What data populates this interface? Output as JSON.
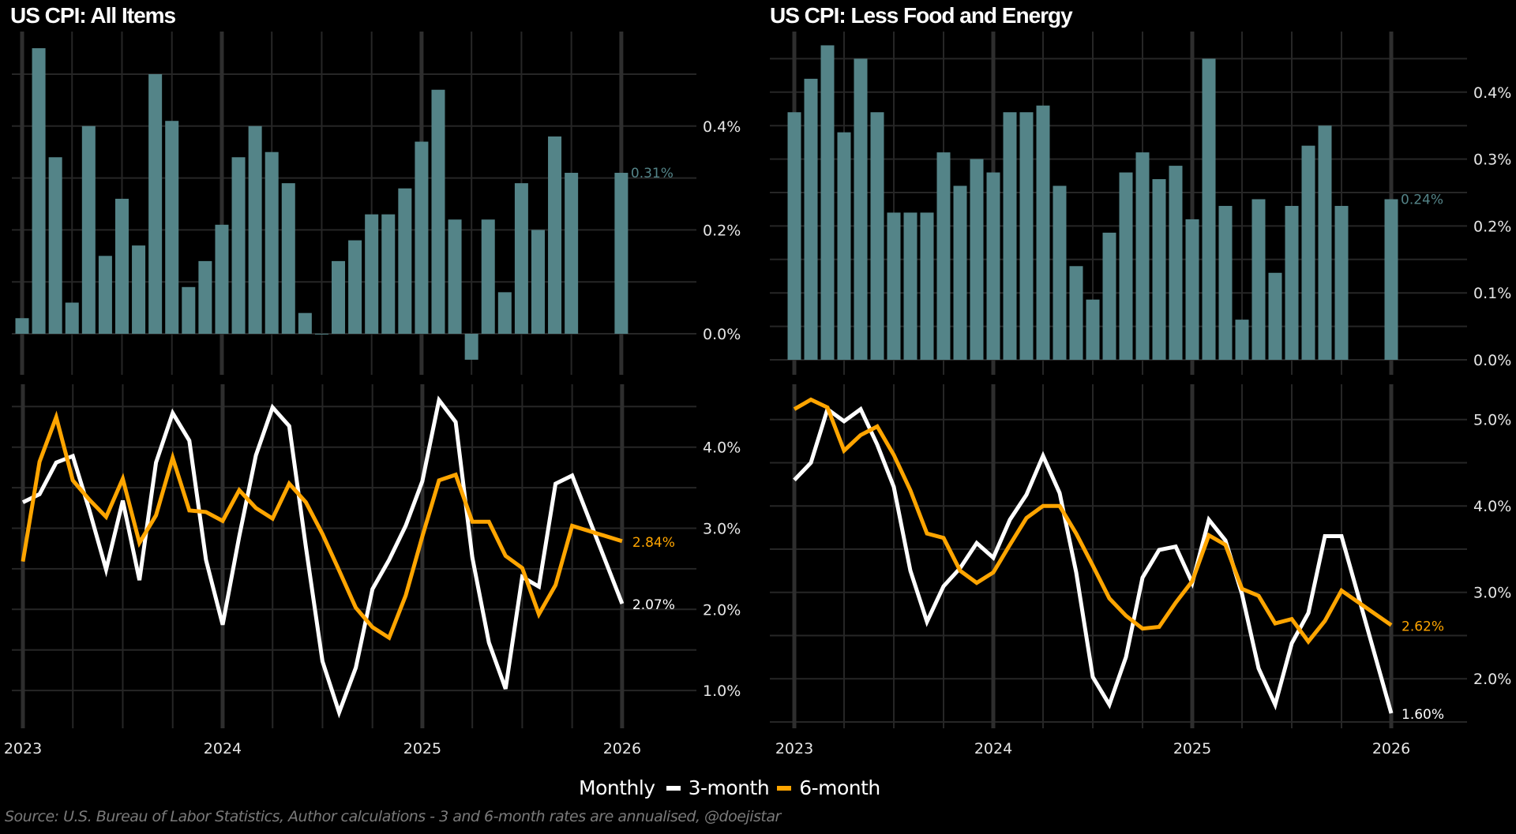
{
  "panels": [
    {
      "title": "US CPI: All Items"
    },
    {
      "title": "US CPI: Less Food and Energy"
    }
  ],
  "legend": {
    "title": "Monthly",
    "items": [
      {
        "label": "3-month",
        "color": "#ffffff"
      },
      {
        "label": "6-month",
        "color": "#ffa500"
      }
    ]
  },
  "source": "Source: U.S. Bureau of Labor Statistics, Author calculations - 3 and 6-month rates are annualised, @doejistar",
  "colors": {
    "background": "#000000",
    "bar": "#548488",
    "grid": "#262626",
    "year_line": "#2e2e2e",
    "three_month": "#ffffff",
    "six_month": "#ffa500"
  },
  "chart_data": [
    {
      "type": "bar",
      "title": "US CPI: All Items",
      "x_start": "2023-01",
      "x_ticks": [
        "2023",
        "2024",
        "2025",
        "2026"
      ],
      "ylim": [
        -0.05,
        0.57
      ],
      "y_ticks": [
        "0.0%",
        "0.2%",
        "0.4%"
      ],
      "y_tick_values": [
        0,
        0.2,
        0.4
      ],
      "grid": true,
      "values": [
        0.03,
        0.55,
        0.34,
        0.06,
        0.4,
        0.15,
        0.26,
        0.17,
        0.5,
        0.41,
        0.09,
        0.14,
        0.21,
        0.34,
        0.4,
        0.35,
        0.29,
        0.04,
        0.0,
        0.14,
        0.18,
        0.23,
        0.23,
        0.28,
        0.37,
        0.47,
        0.22,
        -0.05,
        0.22,
        0.08,
        0.29,
        0.2,
        0.38,
        0.31,
        null,
        null,
        0.31
      ],
      "end_label": "0.31%"
    },
    {
      "type": "line",
      "x_start": "2023-01",
      "x_ticks": [
        "2023",
        "2024",
        "2025",
        "2026"
      ],
      "ylim": [
        0.5,
        4.7
      ],
      "y_ticks": [
        "1.0%",
        "2.0%",
        "3.0%",
        "4.0%"
      ],
      "y_tick_values": [
        1,
        2,
        3,
        4
      ],
      "grid": true,
      "legend": "bottom",
      "series": [
        {
          "name": "3-month",
          "color": "#ffffff",
          "end_label": "2.07%",
          "values": [
            3.32,
            3.42,
            3.81,
            3.89,
            3.22,
            2.49,
            3.34,
            2.36,
            3.81,
            4.42,
            4.08,
            2.61,
            1.81,
            2.9,
            3.9,
            4.49,
            4.26,
            2.77,
            1.36,
            0.73,
            1.28,
            2.25,
            2.61,
            3.03,
            3.58,
            4.58,
            4.31,
            2.64,
            1.59,
            1.02,
            2.4,
            2.28,
            3.55,
            3.65,
            null,
            null,
            2.07
          ]
        },
        {
          "name": "6-month",
          "color": "#ffa500",
          "end_label": "2.84%",
          "values": [
            2.59,
            3.82,
            4.37,
            3.59,
            3.35,
            3.14,
            3.61,
            2.82,
            3.16,
            3.87,
            3.22,
            3.2,
            3.09,
            3.47,
            3.25,
            3.12,
            3.55,
            3.32,
            2.93,
            2.48,
            2.02,
            1.78,
            1.65,
            2.17,
            2.9,
            3.59,
            3.66,
            3.08,
            3.08,
            2.66,
            2.51,
            1.94,
            2.3,
            3.03,
            null,
            null,
            2.84
          ]
        }
      ]
    },
    {
      "type": "bar",
      "title": "US CPI: Less Food and Energy",
      "x_start": "2023-01",
      "x_ticks": [
        "2023",
        "2024",
        "2025",
        "2026"
      ],
      "ylim": [
        0,
        0.47
      ],
      "y_ticks": [
        "0.0%",
        "0.1%",
        "0.2%",
        "0.3%",
        "0.4%"
      ],
      "y_tick_values": [
        0,
        0.1,
        0.2,
        0.3,
        0.4
      ],
      "grid": true,
      "values": [
        0.37,
        0.42,
        0.47,
        0.34,
        0.45,
        0.37,
        0.22,
        0.22,
        0.22,
        0.31,
        0.26,
        0.3,
        0.28,
        0.37,
        0.37,
        0.38,
        0.26,
        0.14,
        0.09,
        0.19,
        0.28,
        0.31,
        0.27,
        0.29,
        0.21,
        0.45,
        0.23,
        0.06,
        0.24,
        0.13,
        0.23,
        0.32,
        0.35,
        0.23,
        null,
        null,
        0.24
      ],
      "end_label": "0.24%"
    },
    {
      "type": "line",
      "x_start": "2023-01",
      "x_ticks": [
        "2023",
        "2024",
        "2025",
        "2026"
      ],
      "ylim": [
        1.4,
        5.3
      ],
      "y_ticks": [
        "2.0%",
        "3.0%",
        "4.0%",
        "5.0%"
      ],
      "y_tick_values": [
        2,
        3,
        4,
        5
      ],
      "grid": true,
      "legend": "bottom",
      "series": [
        {
          "name": "3-month",
          "color": "#ffffff",
          "end_label": "1.60%",
          "values": [
            4.3,
            4.5,
            5.12,
            4.98,
            5.12,
            4.71,
            4.22,
            3.25,
            2.66,
            3.07,
            3.28,
            3.57,
            3.4,
            3.84,
            4.13,
            4.58,
            4.15,
            3.23,
            2.02,
            1.7,
            2.25,
            3.17,
            3.49,
            3.53,
            3.11,
            3.84,
            3.6,
            2.98,
            2.12,
            1.7,
            2.41,
            2.76,
            3.65,
            3.65,
            null,
            null,
            1.6
          ]
        },
        {
          "name": "6-month",
          "color": "#ffa500",
          "end_label": "2.62%",
          "values": [
            5.12,
            5.23,
            5.14,
            4.64,
            4.82,
            4.92,
            4.59,
            4.18,
            3.68,
            3.63,
            3.25,
            3.11,
            3.23,
            3.55,
            3.86,
            4.0,
            4.0,
            3.68,
            3.31,
            2.93,
            2.73,
            2.58,
            2.6,
            2.88,
            3.13,
            3.66,
            3.55,
            3.04,
            2.96,
            2.64,
            2.69,
            2.43,
            2.67,
            3.02,
            null,
            null,
            2.62
          ]
        }
      ]
    }
  ]
}
